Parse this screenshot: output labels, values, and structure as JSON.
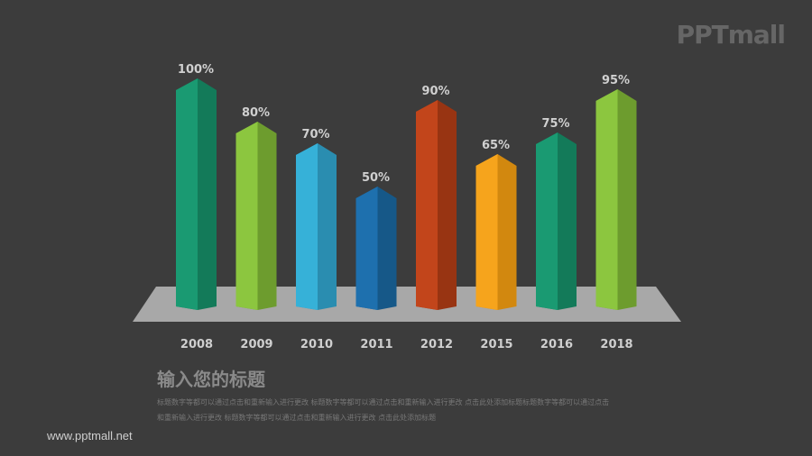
{
  "watermark": "PPTmall",
  "chart_data": {
    "type": "bar",
    "categories": [
      "2008",
      "2009",
      "2010",
      "2011",
      "2012",
      "2015",
      "2016",
      "2018"
    ],
    "values": [
      100,
      80,
      70,
      50,
      90,
      65,
      75,
      95
    ],
    "value_labels": [
      "100%",
      "80%",
      "70%",
      "50%",
      "90%",
      "65%",
      "75%",
      "95%"
    ],
    "ylim": [
      0,
      100
    ],
    "grid": false,
    "colors": [
      [
        "#1a9a72",
        "#137a59"
      ],
      [
        "#8cc63f",
        "#6d9c2e"
      ],
      [
        "#36b1d8",
        "#2a8db0"
      ],
      [
        "#1e70ae",
        "#165888"
      ],
      [
        "#c2451b",
        "#983412"
      ],
      [
        "#f6a41c",
        "#d2880f"
      ],
      [
        "#1a9a72",
        "#137a59"
      ],
      [
        "#8cc63f",
        "#6d9c2e"
      ]
    ],
    "platform_color": "#a8a8a8"
  },
  "text": {
    "title": "输入您的标题",
    "desc_line1": "标题数字等都可以通过点击和重新输入进行更改 标题数字等都可以通过点击和重新输入进行更改 点击此处添加标题标题数字等都可以通过点击",
    "desc_line2": "和重新输入进行更改 标题数字等都可以通过点击和重新输入进行更改 点击此处添加标题"
  },
  "footer": {
    "url": "www.pptmall.net"
  }
}
